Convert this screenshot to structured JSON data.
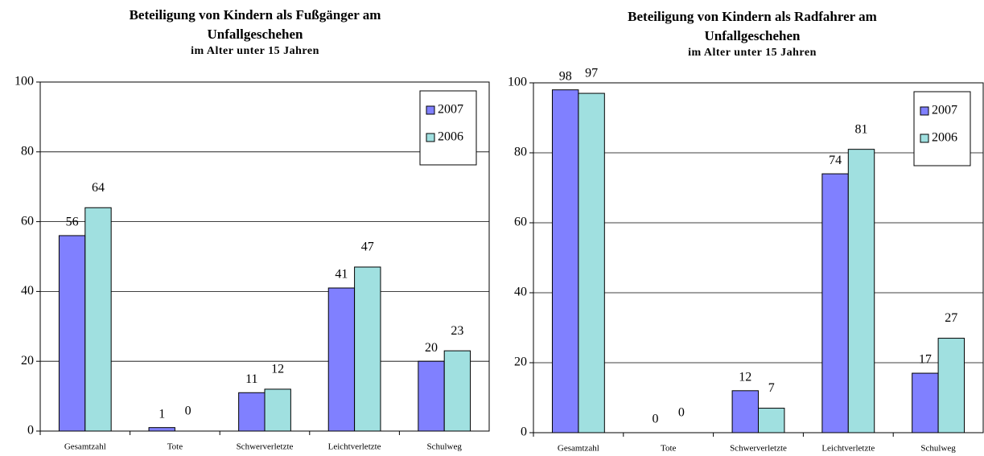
{
  "chart_data": [
    {
      "type": "bar",
      "title": [
        "Beteiligung von Kindern als Fußgänger am",
        "Unfallgeschehen"
      ],
      "subtitle": "im Alter unter 15 Jahren",
      "categories": [
        "Gesamtzahl",
        "Tote",
        "Schwerverletzte",
        "Leichtverletzte",
        "Schulweg"
      ],
      "series": [
        {
          "name": "2007",
          "color": "#8080ff",
          "values": [
            56,
            1,
            11,
            41,
            20
          ]
        },
        {
          "name": "2006",
          "color": "#a0e0e0",
          "values": [
            64,
            0,
            12,
            47,
            23
          ]
        }
      ],
      "ylim": [
        0,
        100
      ],
      "yticks": [
        0,
        20,
        40,
        60,
        80,
        100
      ],
      "grid": true,
      "legend": "upper right"
    },
    {
      "type": "bar",
      "title": [
        "Beteiligung von Kindern als Radfahrer am",
        "Unfallgeschehen"
      ],
      "subtitle": "im Alter unter 15 Jahren",
      "categories": [
        "Gesamtzahl",
        "Tote",
        "Schwerverletzte",
        "Leichtverletzte",
        "Schulweg"
      ],
      "series": [
        {
          "name": "2007",
          "color": "#8080ff",
          "values": [
            98,
            0,
            12,
            74,
            17
          ]
        },
        {
          "name": "2006",
          "color": "#a0e0e0",
          "values": [
            97,
            0,
            7,
            81,
            27
          ]
        }
      ],
      "ylim": [
        0,
        100
      ],
      "yticks": [
        0,
        20,
        40,
        60,
        80,
        100
      ],
      "grid": true,
      "legend": "upper right"
    }
  ]
}
